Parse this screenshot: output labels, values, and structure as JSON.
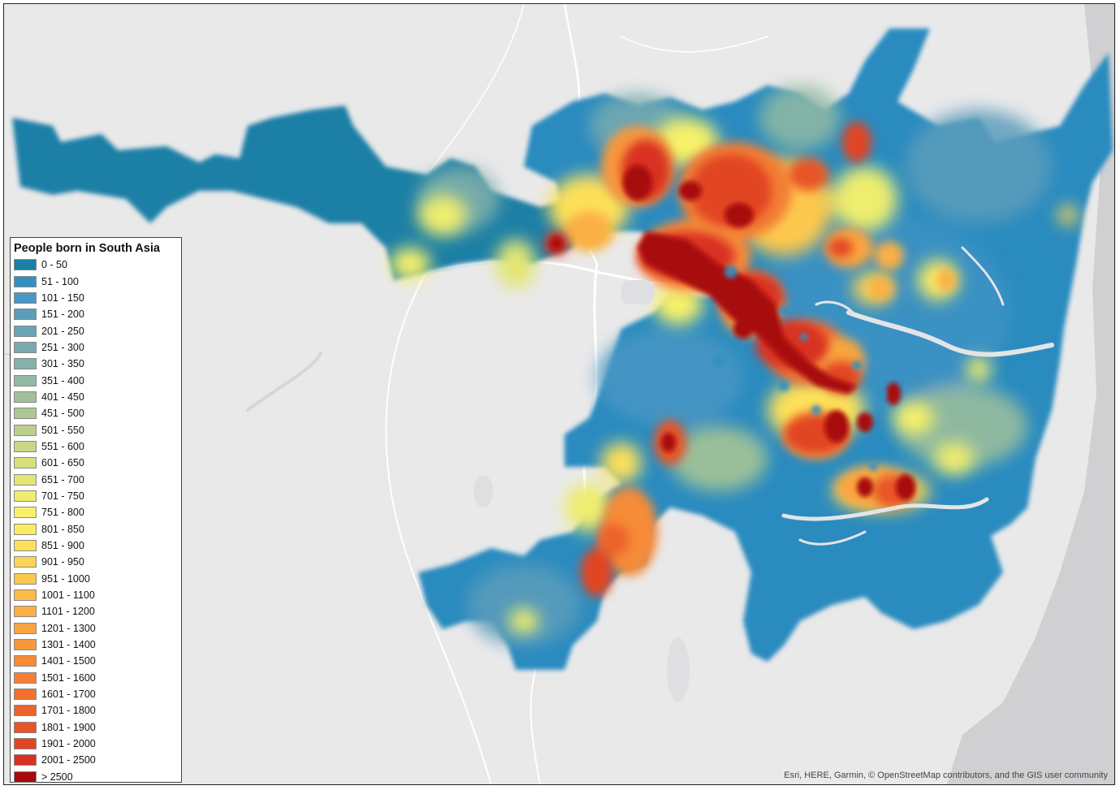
{
  "legend": {
    "title": "People born in South Asia",
    "classes": [
      {
        "label": "0 - 50",
        "color": "#1b7fa6"
      },
      {
        "label": "51 - 100",
        "color": "#3391c2"
      },
      {
        "label": "101 - 150",
        "color": "#4a97c4"
      },
      {
        "label": "151 - 200",
        "color": "#5c9dbb"
      },
      {
        "label": "201 - 250",
        "color": "#6aa5b6"
      },
      {
        "label": "251 - 300",
        "color": "#77abb0"
      },
      {
        "label": "301 - 350",
        "color": "#84b2aa"
      },
      {
        "label": "351 - 400",
        "color": "#92baa2"
      },
      {
        "label": "401 - 450",
        "color": "#a0c19b"
      },
      {
        "label": "451 - 500",
        "color": "#aec893"
      },
      {
        "label": "501 - 550",
        "color": "#bccf8a"
      },
      {
        "label": "551 - 600",
        "color": "#c9d784"
      },
      {
        "label": "601 - 650",
        "color": "#d6df7c"
      },
      {
        "label": "651 - 700",
        "color": "#e2e675"
      },
      {
        "label": "701 - 750",
        "color": "#eeed6e"
      },
      {
        "label": "751 - 800",
        "color": "#f7f169"
      },
      {
        "label": "801 - 850",
        "color": "#fbeb62"
      },
      {
        "label": "851 - 900",
        "color": "#fde05a"
      },
      {
        "label": "901 - 950",
        "color": "#fdd453"
      },
      {
        "label": "951 - 1000",
        "color": "#fdc84d"
      },
      {
        "label": "1001 - 1100",
        "color": "#fcbc48"
      },
      {
        "label": "1101 - 1200",
        "color": "#fbb044"
      },
      {
        "label": "1201 - 1300",
        "color": "#f9a440"
      },
      {
        "label": "1301 - 1400",
        "color": "#f8983c"
      },
      {
        "label": "1401 - 1500",
        "color": "#f68b38"
      },
      {
        "label": "1501 - 1600",
        "color": "#f37e34"
      },
      {
        "label": "1601 - 1700",
        "color": "#f07130"
      },
      {
        "label": "1701 - 1800",
        "color": "#ec632c"
      },
      {
        "label": "1801 - 1900",
        "color": "#e85428"
      },
      {
        "label": "1901 - 2000",
        "color": "#e24524"
      },
      {
        "label": "2001 - 2500",
        "color": "#d93220"
      },
      {
        "label": "> 2500",
        "color": "#a8070c"
      }
    ]
  },
  "map": {
    "base_color": "#e9e9ea",
    "land_color": "#e4e4e6",
    "road_color": "#ffffff",
    "ocean_color": "#d0d0d3"
  },
  "attribution": "Esri, HERE, Garmin, © OpenStreetMap contributors, and the GIS user community"
}
